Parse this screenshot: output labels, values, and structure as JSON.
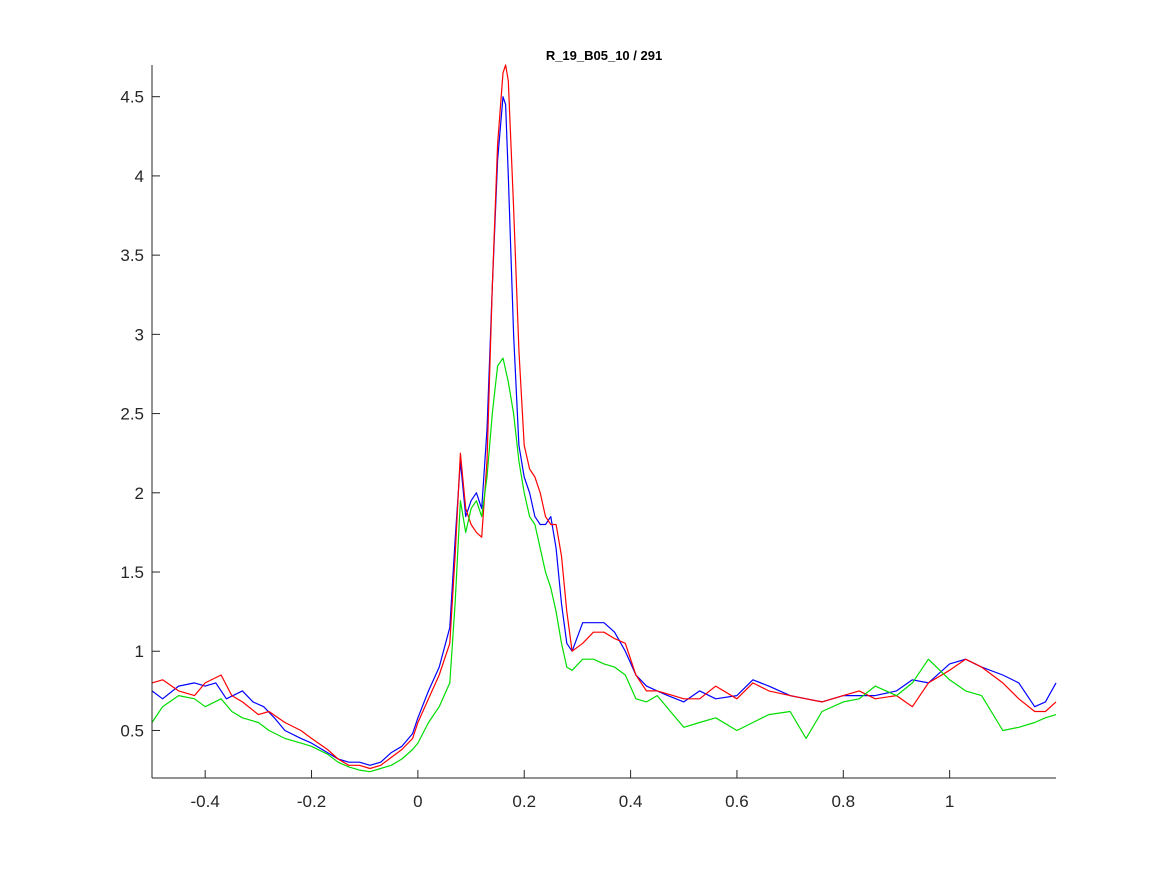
{
  "chart_data": {
    "type": "line",
    "title": "R_19_B05_10 / 291",
    "xlabel": "",
    "ylabel": "",
    "xlim": [
      -0.5,
      1.2
    ],
    "ylim": [
      0.2,
      4.7
    ],
    "grid": false,
    "legend": "none",
    "x_ticks": [
      -0.4,
      -0.2,
      0,
      0.2,
      0.4,
      0.6,
      0.8,
      1
    ],
    "x_tick_labels": [
      "-0.4",
      "-0.2",
      "0",
      "0.2",
      "0.4",
      "0.6",
      "0.8",
      "1"
    ],
    "y_ticks": [
      0.5,
      1,
      1.5,
      2,
      2.5,
      3,
      3.5,
      4,
      4.5
    ],
    "y_tick_labels": [
      "0.5",
      "1",
      "1.5",
      "2",
      "2.5",
      "3",
      "3.5",
      "4",
      "4.5"
    ],
    "series": [
      {
        "color": "#0000ff",
        "x": [
          -0.5,
          -0.48,
          -0.45,
          -0.42,
          -0.4,
          -0.38,
          -0.36,
          -0.33,
          -0.31,
          -0.29,
          -0.27,
          -0.25,
          -0.22,
          -0.2,
          -0.18,
          -0.15,
          -0.13,
          -0.11,
          -0.09,
          -0.07,
          -0.05,
          -0.03,
          -0.01,
          0.0,
          0.02,
          0.04,
          0.06,
          0.07,
          0.08,
          0.09,
          0.1,
          0.11,
          0.12,
          0.13,
          0.14,
          0.15,
          0.16,
          0.165,
          0.17,
          0.18,
          0.19,
          0.2,
          0.21,
          0.22,
          0.23,
          0.24,
          0.25,
          0.26,
          0.27,
          0.28,
          0.29,
          0.31,
          0.33,
          0.35,
          0.37,
          0.39,
          0.41,
          0.43,
          0.45,
          0.47,
          0.5,
          0.53,
          0.56,
          0.6,
          0.63,
          0.66,
          0.7,
          0.73,
          0.76,
          0.8,
          0.83,
          0.86,
          0.9,
          0.93,
          0.96,
          1.0,
          1.03,
          1.06,
          1.1,
          1.13,
          1.16,
          1.18,
          1.2
        ],
        "y": [
          0.75,
          0.7,
          0.78,
          0.8,
          0.78,
          0.8,
          0.7,
          0.75,
          0.68,
          0.65,
          0.58,
          0.5,
          0.45,
          0.42,
          0.38,
          0.32,
          0.3,
          0.3,
          0.28,
          0.3,
          0.36,
          0.4,
          0.48,
          0.58,
          0.75,
          0.9,
          1.15,
          1.7,
          2.2,
          1.85,
          1.95,
          2.0,
          1.9,
          2.4,
          3.3,
          4.1,
          4.5,
          4.45,
          4.0,
          3.0,
          2.3,
          2.1,
          2.0,
          1.85,
          1.8,
          1.8,
          1.85,
          1.65,
          1.3,
          1.05,
          1.0,
          1.18,
          1.18,
          1.18,
          1.12,
          1.0,
          0.85,
          0.78,
          0.75,
          0.72,
          0.68,
          0.75,
          0.7,
          0.72,
          0.82,
          0.78,
          0.72,
          0.7,
          0.68,
          0.72,
          0.72,
          0.72,
          0.75,
          0.82,
          0.8,
          0.92,
          0.95,
          0.9,
          0.85,
          0.8,
          0.65,
          0.68,
          0.8
        ]
      },
      {
        "color": "#ff0000",
        "x": [
          -0.5,
          -0.48,
          -0.45,
          -0.42,
          -0.4,
          -0.37,
          -0.35,
          -0.33,
          -0.3,
          -0.28,
          -0.25,
          -0.22,
          -0.2,
          -0.17,
          -0.15,
          -0.13,
          -0.11,
          -0.09,
          -0.07,
          -0.05,
          -0.03,
          -0.01,
          0.0,
          0.02,
          0.04,
          0.06,
          0.07,
          0.08,
          0.09,
          0.1,
          0.11,
          0.12,
          0.13,
          0.14,
          0.15,
          0.16,
          0.165,
          0.17,
          0.18,
          0.19,
          0.2,
          0.21,
          0.22,
          0.23,
          0.24,
          0.25,
          0.26,
          0.27,
          0.28,
          0.29,
          0.31,
          0.33,
          0.35,
          0.37,
          0.39,
          0.41,
          0.43,
          0.45,
          0.48,
          0.5,
          0.53,
          0.56,
          0.6,
          0.63,
          0.66,
          0.7,
          0.73,
          0.76,
          0.8,
          0.83,
          0.86,
          0.9,
          0.93,
          0.96,
          1.0,
          1.03,
          1.06,
          1.1,
          1.13,
          1.16,
          1.18,
          1.2
        ],
        "y": [
          0.8,
          0.82,
          0.75,
          0.72,
          0.8,
          0.85,
          0.72,
          0.68,
          0.6,
          0.62,
          0.55,
          0.5,
          0.45,
          0.38,
          0.32,
          0.28,
          0.28,
          0.26,
          0.28,
          0.33,
          0.38,
          0.45,
          0.55,
          0.7,
          0.85,
          1.05,
          1.6,
          2.25,
          1.9,
          1.8,
          1.75,
          1.72,
          2.2,
          3.3,
          4.2,
          4.65,
          4.7,
          4.6,
          3.8,
          2.9,
          2.3,
          2.15,
          2.1,
          2.0,
          1.85,
          1.8,
          1.8,
          1.6,
          1.25,
          1.0,
          1.05,
          1.12,
          1.12,
          1.08,
          1.05,
          0.85,
          0.75,
          0.75,
          0.72,
          0.7,
          0.7,
          0.78,
          0.7,
          0.8,
          0.75,
          0.72,
          0.7,
          0.68,
          0.72,
          0.75,
          0.7,
          0.72,
          0.65,
          0.8,
          0.88,
          0.95,
          0.9,
          0.8,
          0.7,
          0.62,
          0.62,
          0.68
        ]
      },
      {
        "color": "#00dd00",
        "x": [
          -0.5,
          -0.48,
          -0.45,
          -0.42,
          -0.4,
          -0.37,
          -0.35,
          -0.33,
          -0.3,
          -0.28,
          -0.25,
          -0.22,
          -0.2,
          -0.17,
          -0.15,
          -0.13,
          -0.11,
          -0.09,
          -0.07,
          -0.05,
          -0.03,
          -0.01,
          0.0,
          0.02,
          0.04,
          0.06,
          0.07,
          0.08,
          0.09,
          0.1,
          0.11,
          0.12,
          0.13,
          0.14,
          0.15,
          0.16,
          0.17,
          0.18,
          0.19,
          0.2,
          0.21,
          0.22,
          0.23,
          0.24,
          0.25,
          0.26,
          0.27,
          0.28,
          0.29,
          0.31,
          0.33,
          0.35,
          0.37,
          0.39,
          0.41,
          0.43,
          0.45,
          0.48,
          0.5,
          0.53,
          0.56,
          0.6,
          0.63,
          0.66,
          0.7,
          0.73,
          0.76,
          0.8,
          0.83,
          0.86,
          0.9,
          0.93,
          0.96,
          1.0,
          1.03,
          1.06,
          1.1,
          1.13,
          1.16,
          1.18,
          1.2
        ],
        "y": [
          0.55,
          0.65,
          0.72,
          0.7,
          0.65,
          0.7,
          0.62,
          0.58,
          0.55,
          0.5,
          0.45,
          0.42,
          0.4,
          0.35,
          0.3,
          0.27,
          0.25,
          0.24,
          0.26,
          0.28,
          0.32,
          0.38,
          0.42,
          0.55,
          0.65,
          0.8,
          1.3,
          1.95,
          1.75,
          1.9,
          1.95,
          1.85,
          2.1,
          2.5,
          2.8,
          2.85,
          2.7,
          2.5,
          2.2,
          2.0,
          1.85,
          1.8,
          1.65,
          1.5,
          1.4,
          1.25,
          1.05,
          0.9,
          0.88,
          0.95,
          0.95,
          0.92,
          0.9,
          0.85,
          0.7,
          0.68,
          0.72,
          0.6,
          0.52,
          0.55,
          0.58,
          0.5,
          0.55,
          0.6,
          0.62,
          0.45,
          0.62,
          0.68,
          0.7,
          0.78,
          0.72,
          0.8,
          0.95,
          0.82,
          0.75,
          0.72,
          0.5,
          0.52,
          0.55,
          0.58,
          0.6
        ]
      }
    ]
  }
}
